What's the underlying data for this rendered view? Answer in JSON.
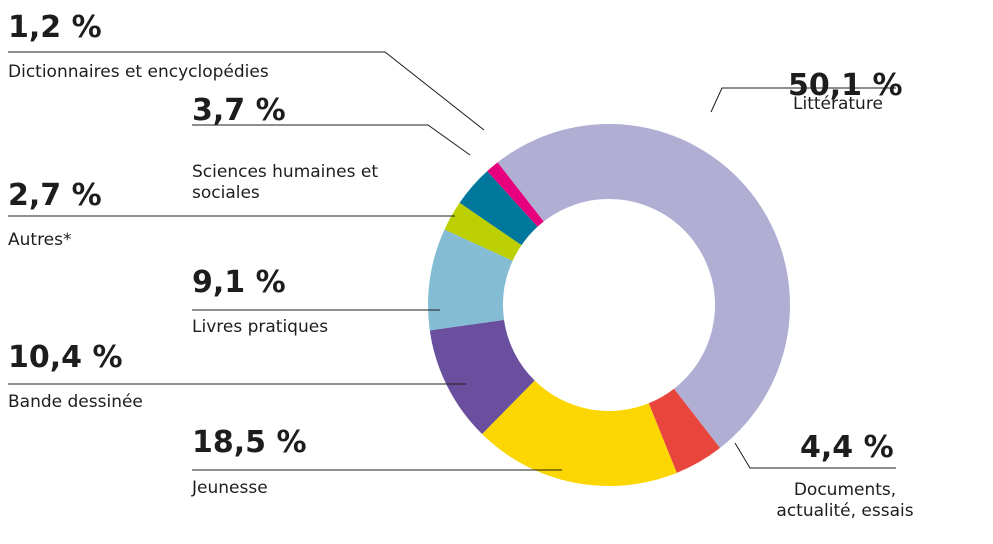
{
  "chart_data": {
    "type": "donut",
    "categories": [
      "Littérature",
      "Documents, actualité, essais",
      "Jeunesse",
      "Bande dessinée",
      "Livres pratiques",
      "Autres*",
      "Sciences humaines et sociales",
      "Dictionnaires et encyclopédies"
    ],
    "values": [
      50.1,
      4.4,
      18.5,
      10.4,
      9.1,
      2.7,
      3.7,
      1.2
    ],
    "value_labels": [
      "50,1 %",
      "4,4 %",
      "18,5 %",
      "10,4 %",
      "9,1 %",
      "2,7 %",
      "3,7 %",
      "1,2 %"
    ],
    "colors": [
      "#b0aed3",
      "#e8453c",
      "#fcd600",
      "#6a4f9e",
      "#83bcd3",
      "#bccf00",
      "#00789b",
      "#e6007e"
    ]
  }
}
